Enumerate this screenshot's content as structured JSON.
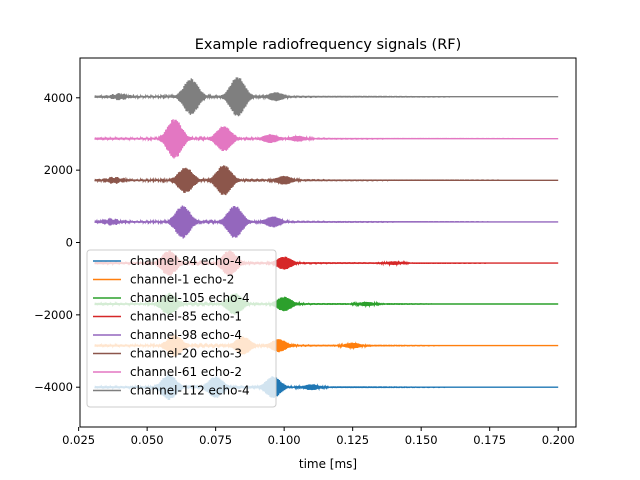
{
  "chart_data": {
    "type": "line",
    "title": "Example radiofrequency signals (RF)",
    "xlabel": "time [ms]",
    "ylabel": "",
    "xlim": [
      0.0255,
      0.2065
    ],
    "ylim": [
      -5100,
      5100
    ],
    "xticks": [
      0.025,
      0.05,
      0.075,
      0.1,
      0.125,
      0.15,
      0.175,
      0.2
    ],
    "xtick_labels": [
      "0.025",
      "0.050",
      "0.075",
      "0.100",
      "0.125",
      "0.150",
      "0.175",
      "0.200"
    ],
    "yticks": [
      -4000,
      -2000,
      0,
      2000,
      4000
    ],
    "ytick_labels": [
      "−4000",
      "−2000",
      "0",
      "2000",
      "4000"
    ],
    "grid": false,
    "legend_position": "lower-left",
    "x_range": [
      0.031,
      0.2
    ],
    "series": [
      {
        "name": "channel-84 echo-4",
        "color": "#1f77b4",
        "offset": -4000,
        "bursts": [
          [
            0.058,
            350
          ],
          [
            0.075,
            300
          ],
          [
            0.096,
            300
          ],
          [
            0.11,
            80
          ]
        ]
      },
      {
        "name": "channel-1 echo-2",
        "color": "#ff7f0e",
        "offset": -2850,
        "bursts": [
          [
            0.06,
            300
          ],
          [
            0.085,
            250
          ],
          [
            0.098,
            180
          ],
          [
            0.125,
            80
          ]
        ]
      },
      {
        "name": "channel-105 echo-4",
        "color": "#2ca02c",
        "offset": -1700,
        "bursts": [
          [
            0.058,
            300
          ],
          [
            0.082,
            300
          ],
          [
            0.1,
            200
          ],
          [
            0.13,
            60
          ]
        ]
      },
      {
        "name": "channel-85 echo-1",
        "color": "#d62728",
        "offset": -570,
        "bursts": [
          [
            0.058,
            350
          ],
          [
            0.08,
            350
          ],
          [
            0.1,
            180
          ],
          [
            0.14,
            50
          ]
        ]
      },
      {
        "name": "channel-98 echo-4",
        "color": "#9467bd",
        "offset": 570,
        "bursts": [
          [
            0.037,
            80
          ],
          [
            0.063,
            450
          ],
          [
            0.082,
            450
          ],
          [
            0.096,
            150
          ]
        ]
      },
      {
        "name": "channel-20 echo-3",
        "color": "#8c564b",
        "offset": 1720,
        "bursts": [
          [
            0.038,
            80
          ],
          [
            0.064,
            350
          ],
          [
            0.078,
            420
          ],
          [
            0.1,
            120
          ]
        ]
      },
      {
        "name": "channel-61 echo-2",
        "color": "#e377c2",
        "offset": 2870,
        "bursts": [
          [
            0.06,
            550
          ],
          [
            0.078,
            350
          ],
          [
            0.095,
            120
          ],
          [
            0.105,
            80
          ]
        ]
      },
      {
        "name": "channel-112 echo-4",
        "color": "#7f7f7f",
        "offset": 4030,
        "bursts": [
          [
            0.04,
            80
          ],
          [
            0.066,
            500
          ],
          [
            0.083,
            550
          ],
          [
            0.097,
            120
          ]
        ]
      }
    ]
  }
}
